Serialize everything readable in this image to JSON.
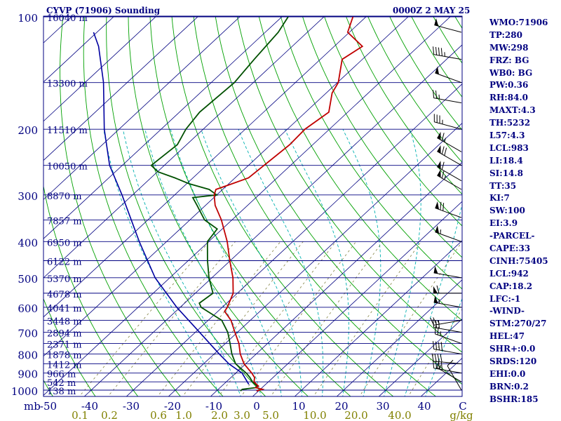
{
  "header": {
    "station": "CYVP (71906) Sounding",
    "time": "0000Z  2 MAY 25"
  },
  "stats": [
    "WMO:71906",
    "TP:280",
    "MW:298",
    "FRZ: BG",
    "WB0: BG",
    "PW:0.36",
    "RH:84.0",
    "MAXT:4.3",
    "TH:5232",
    "L57:4.3",
    "LCL:983",
    "LI:18.4",
    "SI:14.8",
    "TT:35",
    "KI:7",
    "SW:100",
    "EI:3.9",
    "-PARCEL-",
    "CAPE:33",
    "CINH:75405",
    "LCL:942",
    "CAP:18.2",
    "LFC:-1",
    "-WIND-",
    "STM:270/27",
    "HEL:47",
    "SHR+:0.0",
    "SRDS:120",
    "EHI:0.0",
    "BRN:0.2",
    "BSHR:185"
  ],
  "colors": {
    "frame": "#000080",
    "isobar": "#000080",
    "isotherm": "#000080",
    "dry_adiabat": "#00a000",
    "moist_adiabat": "#00b0b0",
    "mixing_ratio": "#808040",
    "temperature": "#c00000",
    "dewpoint": "#005000",
    "parcel": "#0000a0",
    "wind_barb": "#000000",
    "mixing_label": "#808000"
  },
  "chart_data": {
    "type": "skew-t",
    "y_axis": {
      "label": "mb",
      "pressure_ticks": [
        100,
        200,
        300,
        400,
        500,
        600,
        700,
        800,
        900,
        1000
      ],
      "scale": "log",
      "range_mb": [
        1050,
        100
      ]
    },
    "x_axis": {
      "temperature_ticks": [
        "-50",
        "-40",
        "-30",
        "-20",
        "-10",
        "0",
        "10",
        "20",
        "30",
        "40",
        "C"
      ],
      "range_c": [
        -50,
        50
      ]
    },
    "mixing_ratio_labels": [
      "0.1",
      "0.2",
      "0.6",
      "1.0",
      "2.0",
      "3.0",
      "5.0",
      "10.0",
      "20.0",
      "40.0",
      "g/kg"
    ],
    "height_labels": [
      {
        "p": 100,
        "label": "16040 m"
      },
      {
        "p": 150,
        "label": "13300 m"
      },
      {
        "p": 200,
        "label": "11510 m"
      },
      {
        "p": 250,
        "label": "10050 m"
      },
      {
        "p": 300,
        "label": "8870 m"
      },
      {
        "p": 350,
        "label": "7857 m"
      },
      {
        "p": 400,
        "label": "6950 m"
      },
      {
        "p": 450,
        "label": "6122 m"
      },
      {
        "p": 500,
        "label": "5370 m"
      },
      {
        "p": 550,
        "label": "4678 m"
      },
      {
        "p": 600,
        "label": "4041 m"
      },
      {
        "p": 650,
        "label": "3448 m"
      },
      {
        "p": 700,
        "label": "2894 m"
      },
      {
        "p": 750,
        "label": "2371 m"
      },
      {
        "p": 800,
        "label": "1878 m"
      },
      {
        "p": 850,
        "label": "1412 m"
      },
      {
        "p": 900,
        "label": "966 m"
      },
      {
        "p": 950,
        "label": "542 m"
      },
      {
        "p": 1000,
        "label": "138 m"
      }
    ],
    "temperature": [
      [
        1005,
        -0.5
      ],
      [
        995,
        0.5
      ],
      [
        985,
        -1.5
      ],
      [
        975,
        -1.3
      ],
      [
        950,
        -3.4
      ],
      [
        925,
        -4.4
      ],
      [
        900,
        -6.2
      ],
      [
        850,
        -10.4
      ],
      [
        800,
        -13.8
      ],
      [
        750,
        -16.8
      ],
      [
        700,
        -20.6
      ],
      [
        650,
        -24.6
      ],
      [
        615,
        -28.4
      ],
      [
        600,
        -28.8
      ],
      [
        550,
        -31.0
      ],
      [
        500,
        -35.0
      ],
      [
        450,
        -40.1
      ],
      [
        400,
        -45.6
      ],
      [
        350,
        -52.5
      ],
      [
        320,
        -57.7
      ],
      [
        300,
        -60.6
      ],
      [
        290,
        -61.6
      ],
      [
        280,
        -59.2
      ],
      [
        270,
        -56.8
      ],
      [
        250,
        -56.3
      ],
      [
        220,
        -55.5
      ],
      [
        200,
        -55.8
      ],
      [
        180,
        -54.5
      ],
      [
        160,
        -58.6
      ],
      [
        150,
        -59.8
      ],
      [
        130,
        -64.8
      ],
      [
        120,
        -63.3
      ],
      [
        110,
        -70.4
      ],
      [
        100,
        -73.1
      ]
    ],
    "dewpoint": [
      [
        1005,
        -4.3
      ],
      [
        995,
        -4.3
      ],
      [
        985,
        -1.6
      ],
      [
        975,
        -1.6
      ],
      [
        950,
        -3.8
      ],
      [
        925,
        -5.5
      ],
      [
        900,
        -7.5
      ],
      [
        850,
        -12.4
      ],
      [
        800,
        -15.8
      ],
      [
        750,
        -18.9
      ],
      [
        700,
        -22.3
      ],
      [
        650,
        -26.8
      ],
      [
        600,
        -35.0
      ],
      [
        585,
        -36.5
      ],
      [
        550,
        -35.8
      ],
      [
        500,
        -40.7
      ],
      [
        450,
        -45.4
      ],
      [
        400,
        -50.3
      ],
      [
        370,
        -51.2
      ],
      [
        350,
        -56.5
      ],
      [
        320,
        -62.0
      ],
      [
        305,
        -65.0
      ],
      [
        300,
        -60.0
      ],
      [
        290,
        -63.2
      ],
      [
        280,
        -69.4
      ],
      [
        270,
        -74.3
      ],
      [
        260,
        -79.9
      ],
      [
        250,
        -83.1
      ],
      [
        220,
        -82.2
      ],
      [
        200,
        -84.1
      ],
      [
        180,
        -85.2
      ],
      [
        150,
        -84.5
      ],
      [
        130,
        -85.7
      ],
      [
        110,
        -86.9
      ],
      [
        100,
        -88.5
      ]
    ],
    "parcel": [
      [
        965,
        -4.0
      ],
      [
        900,
        -8.5
      ],
      [
        850,
        -14.0
      ],
      [
        800,
        -18.8
      ],
      [
        700,
        -29.0
      ],
      [
        600,
        -40.8
      ],
      [
        500,
        -53.5
      ],
      [
        400,
        -66.5
      ],
      [
        300,
        -82.5
      ],
      [
        250,
        -93.0
      ],
      [
        200,
        -103.5
      ],
      [
        150,
        -115.6
      ],
      [
        120,
        -126.0
      ],
      [
        110,
        -130.8
      ]
    ],
    "wind_barbs": [
      {
        "p": 100,
        "dir": 290,
        "spd": 50
      },
      {
        "p": 110,
        "dir": 285,
        "spd": 50
      },
      {
        "p": 130,
        "dir": 280,
        "spd": 45
      },
      {
        "p": 150,
        "dir": 290,
        "spd": 50
      },
      {
        "p": 170,
        "dir": 280,
        "spd": 25
      },
      {
        "p": 200,
        "dir": 285,
        "spd": 35
      },
      {
        "p": 230,
        "dir": 300,
        "spd": 65
      },
      {
        "p": 250,
        "dir": 300,
        "spd": 70
      },
      {
        "p": 275,
        "dir": 300,
        "spd": 60
      },
      {
        "p": 290,
        "dir": 300,
        "spd": 65
      },
      {
        "p": 345,
        "dir": 290,
        "spd": 70
      },
      {
        "p": 400,
        "dir": 290,
        "spd": 55
      },
      {
        "p": 500,
        "dir": 280,
        "spd": 50
      },
      {
        "p": 550,
        "dir": 270,
        "spd": 60
      },
      {
        "p": 600,
        "dir": 280,
        "spd": 55
      },
      {
        "p": 650,
        "dir": 260,
        "spd": 25
      },
      {
        "p": 700,
        "dir": 280,
        "spd": 30
      },
      {
        "p": 750,
        "dir": 290,
        "spd": 25
      },
      {
        "p": 800,
        "dir": 280,
        "spd": 40
      },
      {
        "p": 850,
        "dir": 275,
        "spd": 40
      },
      {
        "p": 900,
        "dir": 280,
        "spd": 40
      },
      {
        "p": 950,
        "dir": 300,
        "spd": 15
      },
      {
        "p": 1000,
        "dir": 330,
        "spd": 10
      }
    ]
  }
}
